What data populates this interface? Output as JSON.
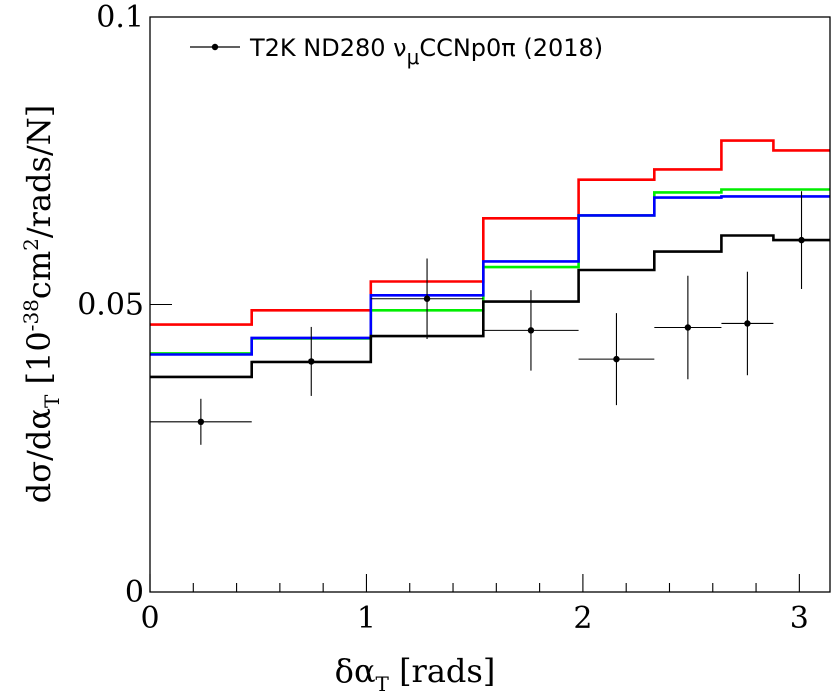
{
  "chart_data": {
    "type": "line",
    "subtype": "histogram-steps-with-data-points",
    "xlabel": "δα",
    "xlabel_sub": "T",
    "xlabel_unit": " [rads]",
    "ylabel_main": "dσ/dα",
    "ylabel_sub": "T",
    "ylabel_open": " [10",
    "ylabel_exp": "-38",
    "ylabel_mid": "cm",
    "ylabel_exp2": "2",
    "ylabel_end": "/rads/N]",
    "xlim": [
      0,
      3.14159
    ],
    "ylim": [
      0,
      0.1
    ],
    "x_ticks": [
      {
        "value": 0,
        "label": "0"
      },
      {
        "value": 1,
        "label": "1"
      },
      {
        "value": 2,
        "label": "2"
      },
      {
        "value": 3,
        "label": "3"
      }
    ],
    "y_ticks": [
      {
        "value": 0,
        "label": "0"
      },
      {
        "value": 0.05,
        "label": "0.05"
      },
      {
        "value": 0.1,
        "label": "0.1"
      }
    ],
    "bin_edges": [
      0,
      0.47,
      1.02,
      1.54,
      1.98,
      2.33,
      2.64,
      2.88,
      3.14159
    ],
    "series": [
      {
        "color": "#ff0000",
        "values": [
          0.0465,
          0.049,
          0.054,
          0.065,
          0.0717,
          0.0735,
          0.0785,
          0.0768
        ]
      },
      {
        "color": "#00ee00",
        "values": [
          0.0415,
          0.0441,
          0.049,
          0.0565,
          0.0655,
          0.0695,
          0.07,
          0.07
        ]
      },
      {
        "color": "#0000ff",
        "values": [
          0.0413,
          0.0442,
          0.0516,
          0.0575,
          0.0655,
          0.0686,
          0.0688,
          0.0688
        ]
      },
      {
        "color": "#000000",
        "values": [
          0.0374,
          0.04,
          0.0445,
          0.0505,
          0.056,
          0.0592,
          0.062,
          0.0612
        ]
      }
    ],
    "data_points": {
      "name": "T2K ND280 ν",
      "name_sub": "μ",
      "name_rest": "CCNp0π (2018)",
      "points": [
        {
          "x": 0.235,
          "xlo": 0.0,
          "xhi": 0.47,
          "y": 0.0296,
          "ylo": 0.0256,
          "yhi": 0.0336
        },
        {
          "x": 0.745,
          "xlo": 0.47,
          "xhi": 1.02,
          "y": 0.0401,
          "ylo": 0.0341,
          "yhi": 0.0461
        },
        {
          "x": 1.28,
          "xlo": 1.02,
          "xhi": 1.54,
          "y": 0.051,
          "ylo": 0.044,
          "yhi": 0.058
        },
        {
          "x": 1.76,
          "xlo": 1.54,
          "xhi": 1.98,
          "y": 0.0455,
          "ylo": 0.0385,
          "yhi": 0.0525
        },
        {
          "x": 2.155,
          "xlo": 1.98,
          "xhi": 2.33,
          "y": 0.0405,
          "ylo": 0.0325,
          "yhi": 0.0485
        },
        {
          "x": 2.485,
          "xlo": 2.33,
          "xhi": 2.64,
          "y": 0.046,
          "ylo": 0.037,
          "yhi": 0.055
        },
        {
          "x": 2.76,
          "xlo": 2.64,
          "xhi": 2.88,
          "y": 0.0467,
          "ylo": 0.0377,
          "yhi": 0.0557
        },
        {
          "x": 3.01,
          "xlo": 2.88,
          "xhi": 3.14159,
          "y": 0.0612,
          "ylo": 0.0527,
          "yhi": 0.0697
        }
      ]
    },
    "legend_position": "top-left",
    "grid": false
  }
}
